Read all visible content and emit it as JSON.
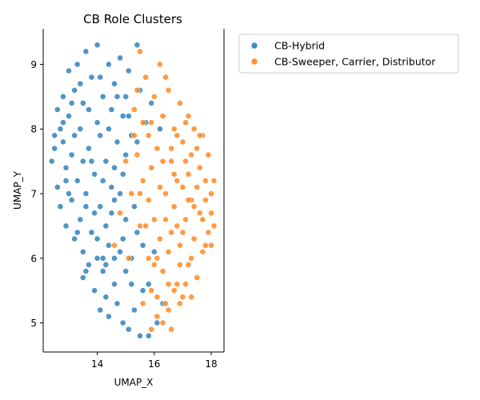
{
  "chart_data": {
    "type": "scatter",
    "title": "CB Role Clusters",
    "xlabel": "UMAP_X",
    "ylabel": "UMAP_Y",
    "xlim": [
      12.1,
      18.45
    ],
    "ylim": [
      4.55,
      9.55
    ],
    "xticks": [
      "14",
      "16",
      "18"
    ],
    "xtick_values": [
      14,
      16,
      18
    ],
    "yticks": [
      "5",
      "6",
      "7",
      "8",
      "9"
    ],
    "ytick_values": [
      5,
      6,
      7,
      8,
      9
    ],
    "grid": false,
    "legend_position": "outside-right-top",
    "series": [
      {
        "name": "CB-Hybrid",
        "color": "#1f77b4",
        "points": [
          [
            12.4,
            7.5
          ],
          [
            12.5,
            7.9
          ],
          [
            12.6,
            8.3
          ],
          [
            12.6,
            7.1
          ],
          [
            12.7,
            6.8
          ],
          [
            12.8,
            8.5
          ],
          [
            12.8,
            7.8
          ],
          [
            12.9,
            6.5
          ],
          [
            12.9,
            7.4
          ],
          [
            13.0,
            8.9
          ],
          [
            13.0,
            8.2
          ],
          [
            13.1,
            6.9
          ],
          [
            13.1,
            7.6
          ],
          [
            13.2,
            6.3
          ],
          [
            13.2,
            8.6
          ],
          [
            13.3,
            9.0
          ],
          [
            13.3,
            7.2
          ],
          [
            13.4,
            6.6
          ],
          [
            13.4,
            8.0
          ],
          [
            13.5,
            5.7
          ],
          [
            13.5,
            6.1
          ],
          [
            13.5,
            8.4
          ],
          [
            13.6,
            9.2
          ],
          [
            13.6,
            7.0
          ],
          [
            13.7,
            5.9
          ],
          [
            13.7,
            7.7
          ],
          [
            13.8,
            6.4
          ],
          [
            13.8,
            8.8
          ],
          [
            13.9,
            5.5
          ],
          [
            13.9,
            7.3
          ],
          [
            14.0,
            9.3
          ],
          [
            14.0,
            6.0
          ],
          [
            14.0,
            8.1
          ],
          [
            14.1,
            5.2
          ],
          [
            14.1,
            6.8
          ],
          [
            14.1,
            7.9
          ],
          [
            14.2,
            5.8
          ],
          [
            14.2,
            8.5
          ],
          [
            14.3,
            5.4
          ],
          [
            14.3,
            6.5
          ],
          [
            14.3,
            7.5
          ],
          [
            14.4,
            9.0
          ],
          [
            14.4,
            5.1
          ],
          [
            14.4,
            6.2
          ],
          [
            14.5,
            8.3
          ],
          [
            14.5,
            7.1
          ],
          [
            14.6,
            5.6
          ],
          [
            14.6,
            6.9
          ],
          [
            14.6,
            8.7
          ],
          [
            14.7,
            5.3
          ],
          [
            14.7,
            7.8
          ],
          [
            14.8,
            6.1
          ],
          [
            14.8,
            9.1
          ],
          [
            14.9,
            5.0
          ],
          [
            14.9,
            7.3
          ],
          [
            14.9,
            8.2
          ],
          [
            15.0,
            5.8
          ],
          [
            15.0,
            6.6
          ],
          [
            15.1,
            4.9
          ],
          [
            15.1,
            8.9
          ],
          [
            15.2,
            6.0
          ],
          [
            15.2,
            7.9
          ],
          [
            15.3,
            5.2
          ],
          [
            15.4,
            9.3
          ],
          [
            15.4,
            6.4
          ],
          [
            15.5,
            4.8
          ],
          [
            15.5,
            8.6
          ],
          [
            15.6,
            5.5
          ],
          [
            15.7,
            8.1
          ],
          [
            15.8,
            4.8
          ],
          [
            15.9,
            8.4
          ],
          [
            16.0,
            6.1
          ],
          [
            16.1,
            5.0
          ],
          [
            16.2,
            8.0
          ],
          [
            16.3,
            5.3
          ],
          [
            12.5,
            7.7
          ],
          [
            12.8,
            8.1
          ],
          [
            13.0,
            7.0
          ],
          [
            13.2,
            7.9
          ],
          [
            13.4,
            8.7
          ],
          [
            13.6,
            6.8
          ],
          [
            13.8,
            7.5
          ],
          [
            14.0,
            6.3
          ],
          [
            14.2,
            7.2
          ],
          [
            14.4,
            8.0
          ],
          [
            14.6,
            6.0
          ],
          [
            14.8,
            7.0
          ],
          [
            15.0,
            8.5
          ],
          [
            15.2,
            5.6
          ],
          [
            15.4,
            7.8
          ],
          [
            13.1,
            8.4
          ],
          [
            13.3,
            6.4
          ],
          [
            13.5,
            7.5
          ],
          [
            13.7,
            8.3
          ],
          [
            13.9,
            6.7
          ],
          [
            14.1,
            8.8
          ],
          [
            14.3,
            5.9
          ],
          [
            14.5,
            6.7
          ],
          [
            14.7,
            8.5
          ],
          [
            14.9,
            6.3
          ],
          [
            12.7,
            8.0
          ],
          [
            12.9,
            7.2
          ],
          [
            13.6,
            5.8
          ],
          [
            14.2,
            6.0
          ],
          [
            14.6,
            7.4
          ],
          [
            15.0,
            7.6
          ],
          [
            15.3,
            6.8
          ],
          [
            15.6,
            6.2
          ],
          [
            15.8,
            5.6
          ],
          [
            15.1,
            8.2
          ]
        ]
      },
      {
        "name": "CB-Sweeper, Carrier, Distributor",
        "color": "#ff7f0e",
        "points": [
          [
            14.6,
            6.2
          ],
          [
            14.8,
            6.7
          ],
          [
            15.0,
            7.5
          ],
          [
            15.1,
            6.0
          ],
          [
            15.2,
            7.0
          ],
          [
            15.3,
            8.3
          ],
          [
            15.4,
            7.6
          ],
          [
            15.5,
            9.2
          ],
          [
            15.5,
            6.5
          ],
          [
            15.6,
            5.3
          ],
          [
            15.6,
            7.2
          ],
          [
            15.7,
            8.8
          ],
          [
            15.8,
            6.0
          ],
          [
            15.8,
            7.9
          ],
          [
            15.9,
            5.5
          ],
          [
            15.9,
            7.4
          ],
          [
            16.0,
            8.5
          ],
          [
            16.0,
            6.6
          ],
          [
            16.1,
            5.1
          ],
          [
            16.1,
            7.7
          ],
          [
            16.2,
            9.0
          ],
          [
            16.2,
            6.3
          ],
          [
            16.3,
            5.8
          ],
          [
            16.3,
            8.2
          ],
          [
            16.4,
            7.0
          ],
          [
            16.4,
            5.3
          ],
          [
            16.5,
            8.6
          ],
          [
            16.5,
            6.1
          ],
          [
            16.6,
            7.5
          ],
          [
            16.6,
            4.9
          ],
          [
            16.7,
            8.0
          ],
          [
            16.7,
            6.8
          ],
          [
            16.8,
            5.6
          ],
          [
            16.8,
            7.2
          ],
          [
            16.9,
            8.4
          ],
          [
            16.9,
            6.2
          ],
          [
            17.0,
            7.8
          ],
          [
            17.0,
            5.4
          ],
          [
            17.1,
            6.6
          ],
          [
            17.1,
            8.1
          ],
          [
            17.2,
            7.3
          ],
          [
            17.2,
            5.9
          ],
          [
            17.3,
            6.9
          ],
          [
            17.3,
            7.6
          ],
          [
            17.4,
            6.3
          ],
          [
            17.4,
            8.0
          ],
          [
            17.5,
            7.1
          ],
          [
            17.5,
            5.7
          ],
          [
            17.6,
            6.7
          ],
          [
            17.6,
            7.4
          ],
          [
            17.7,
            6.1
          ],
          [
            17.7,
            7.9
          ],
          [
            17.8,
            6.9
          ],
          [
            17.8,
            7.2
          ],
          [
            17.9,
            6.4
          ],
          [
            17.9,
            7.6
          ],
          [
            18.0,
            6.7
          ],
          [
            18.0,
            7.0
          ],
          [
            18.1,
            7.2
          ],
          [
            18.1,
            6.5
          ],
          [
            15.3,
            7.9
          ],
          [
            15.5,
            7.0
          ],
          [
            15.7,
            6.5
          ],
          [
            15.9,
            8.1
          ],
          [
            16.1,
            6.0
          ],
          [
            16.3,
            7.5
          ],
          [
            16.5,
            5.6
          ],
          [
            16.7,
            7.3
          ],
          [
            16.9,
            5.9
          ],
          [
            17.1,
            7.5
          ],
          [
            17.3,
            6.0
          ],
          [
            17.5,
            7.7
          ],
          [
            17.7,
            6.6
          ],
          [
            15.4,
            8.6
          ],
          [
            15.6,
            8.1
          ],
          [
            15.8,
            6.9
          ],
          [
            16.0,
            5.9
          ],
          [
            16.2,
            7.1
          ],
          [
            16.4,
            8.8
          ],
          [
            16.6,
            6.4
          ],
          [
            16.8,
            7.9
          ],
          [
            17.0,
            6.4
          ],
          [
            17.2,
            8.2
          ],
          [
            17.4,
            6.8
          ],
          [
            17.6,
            7.9
          ],
          [
            17.8,
            6.2
          ],
          [
            18.0,
            6.2
          ],
          [
            16.3,
            5.0
          ],
          [
            16.5,
            5.2
          ],
          [
            16.7,
            5.5
          ],
          [
            16.9,
            5.3
          ],
          [
            17.1,
            5.6
          ],
          [
            17.3,
            5.4
          ],
          [
            15.9,
            4.9
          ],
          [
            16.1,
            5.4
          ],
          [
            16.4,
            6.6
          ],
          [
            16.6,
            7.7
          ],
          [
            16.8,
            6.5
          ],
          [
            17.0,
            7.1
          ],
          [
            17.2,
            6.9
          ]
        ]
      }
    ]
  }
}
